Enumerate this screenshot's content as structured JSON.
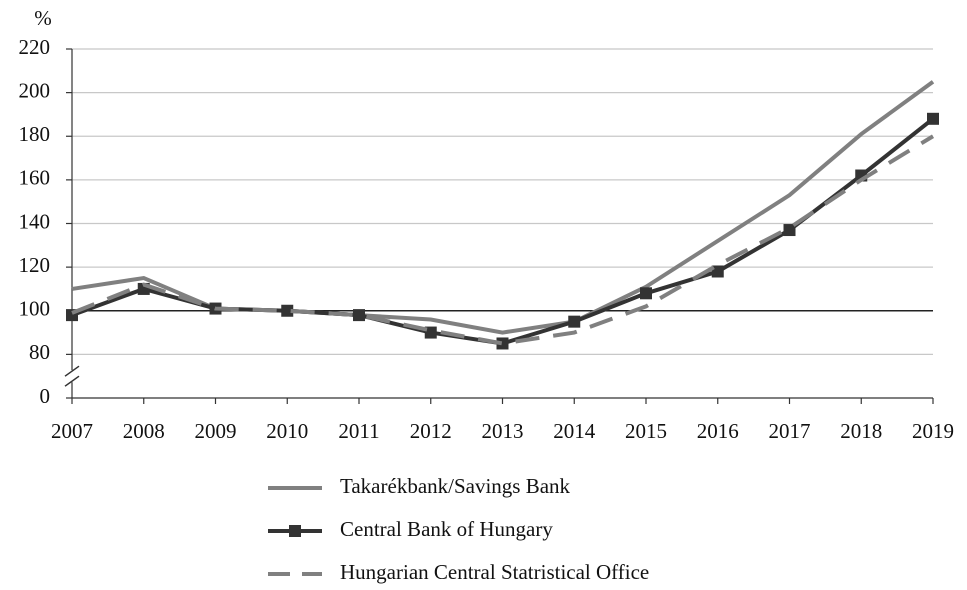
{
  "chart_data": {
    "type": "line",
    "y_unit_label": "%",
    "categories": [
      "2007",
      "2008",
      "2009",
      "2010",
      "2011",
      "2012",
      "2013",
      "2014",
      "2015",
      "2016",
      "2017",
      "2018",
      "2019"
    ],
    "series": [
      {
        "name": "Takarékbank/Savings Bank",
        "color": "#808080",
        "style": "solid",
        "marker": "none",
        "values": [
          110,
          115,
          101,
          100,
          98,
          96,
          90,
          95,
          111,
          132,
          153,
          181,
          205
        ]
      },
      {
        "name": "Central Bank of Hungary",
        "color": "#333333",
        "style": "solid",
        "marker": "square",
        "values": [
          98,
          110,
          101,
          100,
          98,
          90,
          85,
          95,
          108,
          118,
          137,
          162,
          188
        ]
      },
      {
        "name": "Hungarian Central Statristical Office",
        "color": "#808080",
        "style": "dashed",
        "marker": "none",
        "values": [
          99,
          112,
          101,
          100,
          98,
          91,
          85,
          90,
          102,
          121,
          138,
          160,
          180
        ]
      }
    ],
    "ylim": [
      0,
      220
    ],
    "yticks": [
      0,
      80,
      100,
      120,
      140,
      160,
      180,
      200,
      220
    ],
    "axis_break": true,
    "reference_line": 100,
    "grid": true,
    "legend": "bottom"
  }
}
